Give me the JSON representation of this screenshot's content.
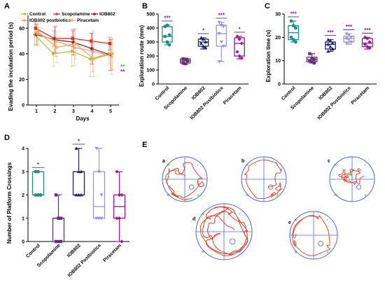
{
  "colors": {
    "control": "#1a8f8a",
    "scopolamine": "#6b2b7a",
    "iob802": "#1e1f78",
    "postbiotics": "#9c93e0",
    "piracetam": "#a1119a",
    "sig_purple": "#8a1aa0",
    "track": "#e8351d",
    "pool": "#4a6bd6"
  },
  "panels": {
    "A": {
      "letter": "A",
      "ylabel": "Evading the incubation period (s)",
      "xlabel": "Days",
      "ylim": [
        0,
        70
      ],
      "yticks": [
        "0",
        "20",
        "40",
        "60"
      ],
      "xticks": [
        "1",
        "2",
        "3",
        "4",
        "5"
      ],
      "legend": [
        "Control",
        "Scopolamine",
        "IOB802",
        "IOB802 postbiotics",
        "Piracetam"
      ],
      "sig_green": "**",
      "sig_red": "**"
    },
    "B": {
      "letter": "B",
      "ylabel": "Exploration route (mm)",
      "yticks": [
        "0",
        "100",
        "200",
        "300",
        "400",
        "500"
      ],
      "sig": [
        "***",
        "",
        "*",
        "***",
        "*"
      ]
    },
    "C": {
      "letter": "C",
      "ylabel": "Exploration time (s)",
      "yticks": [
        "0",
        "10",
        "20",
        "30"
      ],
      "sig": [
        "***",
        "",
        "***",
        "***",
        "***"
      ]
    },
    "D": {
      "letter": "D",
      "ylabel": "Number of Platform Crossings",
      "yticks": [
        "0",
        "1",
        "2",
        "3",
        "4"
      ],
      "sig": [
        "*",
        "",
        "*",
        "",
        ""
      ]
    },
    "E": {
      "letter": "E",
      "tracks": [
        "a",
        "b",
        "c",
        "d",
        "e"
      ],
      "quadrants": [
        "IV",
        "I",
        "III",
        "II"
      ]
    }
  },
  "categories": [
    "Control",
    "Scopolamine",
    "IOB802",
    "IOB802 Postbiotics",
    "Piracetam"
  ],
  "chart_data": [
    {
      "type": "line",
      "title": "",
      "xlabel": "Days",
      "ylabel": "Evading the incubation period (s)",
      "x": [
        1,
        2,
        3,
        4,
        5
      ],
      "ylim": [
        0,
        70
      ],
      "series": [
        {
          "name": "Control",
          "values": [
            55,
            40,
            42,
            36,
            40
          ],
          "err": [
            8,
            10,
            12,
            14,
            8
          ]
        },
        {
          "name": "Scopolamine",
          "values": [
            60,
            52,
            52,
            50,
            48
          ],
          "err": [
            5,
            6,
            6,
            6,
            5
          ]
        },
        {
          "name": "IOB802",
          "values": [
            55,
            51,
            49,
            44,
            39
          ],
          "err": [
            8,
            10,
            10,
            12,
            12
          ]
        },
        {
          "name": "IOB802 postbiotics",
          "values": [
            56,
            50,
            45,
            42,
            38
          ],
          "err": [
            10,
            12,
            14,
            16,
            14
          ]
        },
        {
          "name": "Piracetam",
          "values": [
            57,
            45,
            48,
            36,
            40
          ],
          "err": [
            10,
            12,
            12,
            14,
            12
          ]
        }
      ]
    },
    {
      "type": "box",
      "ylabel": "Exploration route (mm)",
      "categories": [
        "Control",
        "Scopolamine",
        "IOB802",
        "IOB802 Postbiotics",
        "Piracetam"
      ],
      "ylim": [
        0,
        500
      ],
      "boxes": [
        {
          "min": 280,
          "q1": 300,
          "median": 340,
          "q3": 410,
          "max": 420,
          "points": [
            410,
            420,
            350,
            340,
            300,
            280
          ]
        },
        {
          "min": 140,
          "q1": 150,
          "median": 165,
          "q3": 180,
          "max": 185,
          "points": [
            180,
            175,
            165,
            150,
            145
          ]
        },
        {
          "min": 250,
          "q1": 270,
          "median": 300,
          "q3": 320,
          "max": 330,
          "points": [
            330,
            320,
            300,
            290,
            270,
            260
          ]
        },
        {
          "min": 160,
          "q1": 270,
          "median": 360,
          "q3": 420,
          "max": 440,
          "points": [
            440,
            420,
            410,
            360,
            300,
            270,
            160
          ]
        },
        {
          "min": 180,
          "q1": 200,
          "median": 290,
          "q3": 330,
          "max": 340,
          "points": [
            340,
            320,
            290,
            230,
            200,
            185
          ]
        }
      ]
    },
    {
      "type": "box",
      "ylabel": "Exploration time (s)",
      "categories": [
        "Control",
        "Scopolamine",
        "IOB802",
        "IOB802 Postbiotics",
        "Piracetam"
      ],
      "ylim": [
        0,
        30
      ],
      "boxes": [
        {
          "min": 18,
          "q1": 19,
          "median": 22,
          "q3": 25,
          "max": 27,
          "points": [
            27,
            25,
            24,
            20,
            19,
            18
          ]
        },
        {
          "min": 9,
          "q1": 9.5,
          "median": 10.5,
          "q3": 11.5,
          "max": 13,
          "points": [
            13,
            11,
            10.5,
            10,
            9.5,
            9
          ]
        },
        {
          "min": 14,
          "q1": 15,
          "median": 17,
          "q3": 18,
          "max": 19,
          "points": [
            19,
            18.5,
            17.5,
            17,
            16,
            15,
            14
          ]
        },
        {
          "min": 17,
          "q1": 18,
          "median": 19.5,
          "q3": 20.5,
          "max": 21.5,
          "points": [
            21.5,
            21,
            20,
            19.5,
            19,
            18,
            17.5
          ]
        },
        {
          "min": 15,
          "q1": 16,
          "median": 17.5,
          "q3": 19.5,
          "max": 20,
          "points": [
            20,
            19.5,
            18,
            17,
            16,
            15.5
          ]
        }
      ]
    },
    {
      "type": "box",
      "ylabel": "Number of Platform Crossings",
      "categories": [
        "Control",
        "Scopolamine",
        "IOB802",
        "IOB802 Postbiotics",
        "Piracetam"
      ],
      "ylim": [
        0,
        4
      ],
      "boxes": [
        {
          "min": 2,
          "q1": 2,
          "median": 2,
          "q3": 3,
          "max": 3,
          "points": [
            3,
            3,
            2,
            2,
            2,
            2
          ]
        },
        {
          "min": 0,
          "q1": 0,
          "median": 1,
          "q3": 1,
          "max": 2,
          "points": [
            2,
            1,
            1,
            0,
            0,
            0
          ]
        },
        {
          "min": 2,
          "q1": 2,
          "median": 2,
          "q3": 3,
          "max": 4,
          "points": [
            4,
            3,
            3,
            2,
            2,
            2
          ]
        },
        {
          "min": 1,
          "q1": 1,
          "median": 1.5,
          "q3": 3,
          "max": 4,
          "points": [
            4,
            3,
            2,
            1,
            1,
            1
          ]
        },
        {
          "min": 0,
          "q1": 1,
          "median": 1.5,
          "q3": 2,
          "max": 3,
          "points": [
            3,
            2,
            2,
            1,
            1,
            0
          ]
        }
      ]
    }
  ]
}
